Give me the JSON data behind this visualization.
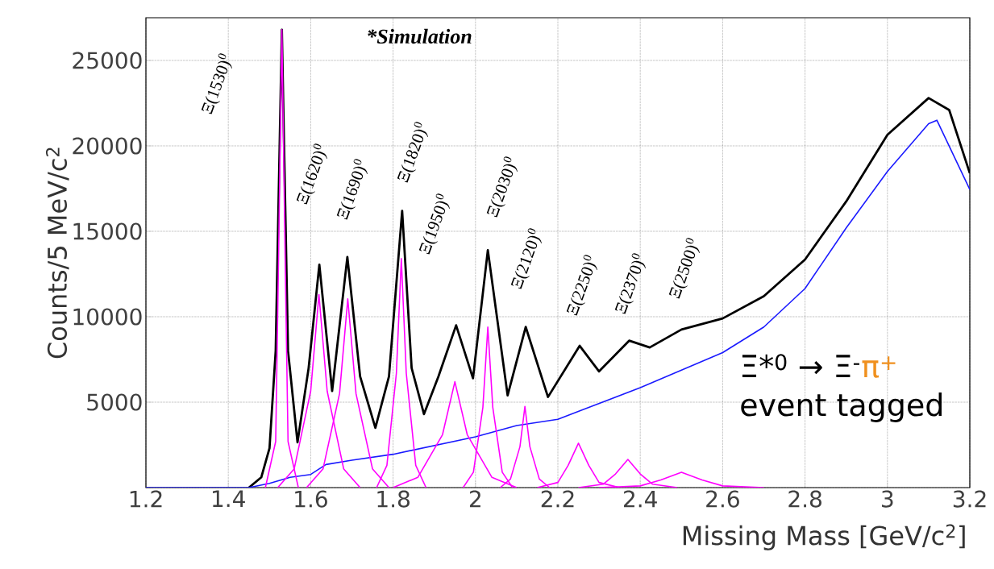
{
  "chart_data": {
    "type": "line",
    "xlabel": "Missing Mass [GeV/c$^{2}$]",
    "ylabel": "Counts/5 MeV/c$^{2}$",
    "xlim": [
      1.2,
      3.2
    ],
    "ylim": [
      0,
      27500
    ],
    "xticks": [
      1.2,
      1.4,
      1.6,
      1.8,
      2,
      2.2,
      2.4,
      2.6,
      2.8,
      3,
      3.2
    ],
    "yticks": [
      {
        "value": 0,
        "label": null
      },
      5000,
      10000,
      15000,
      20000,
      25000
    ],
    "grid": true,
    "series": [
      {
        "color": "#000000",
        "x": [
          1.45,
          1.48,
          1.5,
          1.515,
          1.53,
          1.545,
          1.568,
          1.595,
          1.621,
          1.652,
          1.689,
          1.72,
          1.757,
          1.79,
          1.822,
          1.845,
          1.875,
          1.91,
          1.953,
          1.994,
          2.03,
          2.078,
          2.122,
          2.176,
          2.253,
          2.3,
          2.373,
          2.423,
          2.5,
          2.6,
          2.7,
          2.8,
          2.9,
          3.0,
          3.1,
          3.15,
          3.2
        ],
        "values": [
          0,
          600,
          2300,
          8000,
          26800,
          8000,
          2650,
          7000,
          13050,
          5650,
          13500,
          6500,
          3500,
          6500,
          16200,
          7000,
          4300,
          6500,
          9500,
          6400,
          13900,
          5400,
          9400,
          5300,
          8300,
          6800,
          8600,
          8200,
          9250,
          9900,
          11200,
          13350,
          16750,
          20650,
          22800,
          22100,
          18400
        ]
      },
      {
        "color": "#1a1aff",
        "x": [
          1.2,
          1.45,
          1.5,
          1.55,
          1.6,
          1.637,
          1.7,
          1.8,
          2.0,
          2.1,
          2.2,
          2.4,
          2.6,
          2.7,
          2.8,
          2.9,
          3.0,
          3.1,
          3.12,
          3.2
        ],
        "values": [
          0,
          0,
          250,
          600,
          770,
          1350,
          1600,
          1950,
          2970,
          3630,
          4000,
          5850,
          7900,
          9400,
          11650,
          15200,
          18500,
          21300,
          21500,
          17450
        ]
      },
      {
        "color": "#ff00ff",
        "x": [
          1.49,
          1.515,
          1.522,
          1.53,
          1.538,
          1.545,
          1.57
        ],
        "values": [
          0,
          2700,
          13400,
          26800,
          13400,
          2700,
          0
        ]
      },
      {
        "color": "#ff00ff",
        "x": [
          1.52,
          1.56,
          1.6,
          1.62,
          1.64,
          1.68,
          1.72
        ],
        "values": [
          0,
          1100,
          5650,
          11300,
          5650,
          1100,
          0
        ]
      },
      {
        "color": "#ff00ff",
        "x": [
          1.59,
          1.63,
          1.67,
          1.69,
          1.71,
          1.75,
          1.79
        ],
        "values": [
          0,
          1100,
          5500,
          11050,
          5500,
          1100,
          0
        ]
      },
      {
        "color": "#ff00ff",
        "x": [
          1.76,
          1.785,
          1.808,
          1.82,
          1.832,
          1.855,
          1.88
        ],
        "values": [
          0,
          1300,
          6700,
          13400,
          6700,
          1300,
          0
        ]
      },
      {
        "color": "#ff00ff",
        "x": [
          1.8,
          1.86,
          1.92,
          1.95,
          1.98,
          2.04,
          2.1
        ],
        "values": [
          0,
          600,
          3100,
          6200,
          3100,
          600,
          0
        ]
      },
      {
        "color": "#ff00ff",
        "x": [
          1.97,
          1.995,
          2.018,
          2.03,
          2.042,
          2.065,
          2.09
        ],
        "values": [
          0,
          900,
          4700,
          9400,
          4700,
          900,
          0
        ]
      },
      {
        "color": "#ff00ff",
        "x": [
          2.06,
          2.085,
          2.108,
          2.12,
          2.132,
          2.155,
          2.18
        ],
        "values": [
          0,
          500,
          2400,
          4750,
          2400,
          500,
          0
        ]
      },
      {
        "color": "#ff00ff",
        "x": [
          2.15,
          2.2,
          2.225,
          2.25,
          2.275,
          2.3,
          2.35
        ],
        "values": [
          0,
          300,
          1300,
          2600,
          1300,
          300,
          0
        ]
      },
      {
        "color": "#ff00ff",
        "x": [
          2.25,
          2.31,
          2.34,
          2.37,
          2.4,
          2.43,
          2.49
        ],
        "values": [
          0,
          200,
          800,
          1650,
          800,
          200,
          0
        ]
      },
      {
        "color": "#ff00ff",
        "x": [
          2.3,
          2.4,
          2.45,
          2.5,
          2.55,
          2.6,
          2.7
        ],
        "values": [
          0,
          100,
          450,
          900,
          450,
          100,
          0
        ]
      }
    ],
    "annotations": [
      "Ξ(1530)$^{0}$",
      "Ξ(1620)$^{0}$",
      "Ξ(1690)$^{0}$",
      "Ξ(1820)$^{0}$",
      "Ξ(1950)$^{0}$",
      "Ξ(2030)$^{0}$",
      "Ξ(2120)$^{0}$",
      "Ξ(2250)$^{0}$",
      "Ξ(2370)$^{0}$",
      "Ξ(2500)$^{0}$",
      "*Simulation",
      "Ξ*$^{0}$ → Ξ$^{-}$",
      "π$^{+}$",
      "event tagged"
    ]
  }
}
